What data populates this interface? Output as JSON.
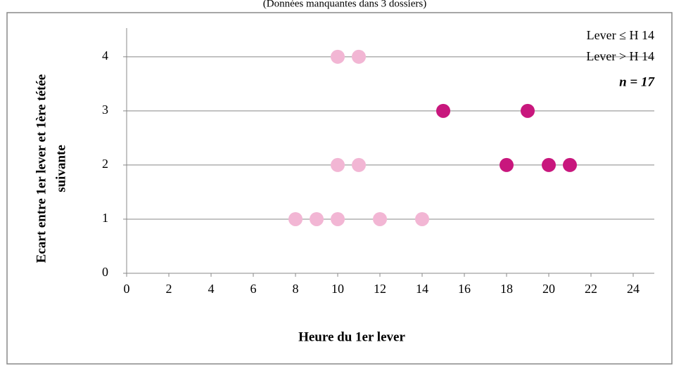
{
  "chart_data": {
    "type": "scatter",
    "subtitle": "(Données manquantes dans 3 dossiers)",
    "xlabel": "Heure du 1er lever",
    "ylabel": [
      "Ecart entre 1er lever et 1ère tétée",
      "suivante"
    ],
    "annotation": "n = 17",
    "xlim": [
      0,
      25
    ],
    "xticks": [
      0,
      2,
      4,
      6,
      8,
      10,
      12,
      14,
      16,
      18,
      20,
      22,
      24
    ],
    "ylim": [
      0,
      4.4
    ],
    "yticks": [
      0,
      1,
      2,
      3,
      4
    ],
    "grid": true,
    "legend": "upper right",
    "series": [
      {
        "name": "Lever ≤ H 14",
        "color": "#f2b6d4",
        "x": [
          10,
          11,
          10,
          11,
          8,
          9,
          10,
          12,
          14
        ],
        "values": [
          4,
          4,
          2,
          2,
          1,
          1,
          1,
          1,
          1
        ]
      },
      {
        "name": "Lever > H 14",
        "color": "#c8177d",
        "x": [
          15,
          19,
          18,
          20,
          21
        ],
        "values": [
          3,
          3,
          2,
          2,
          2
        ]
      }
    ]
  }
}
